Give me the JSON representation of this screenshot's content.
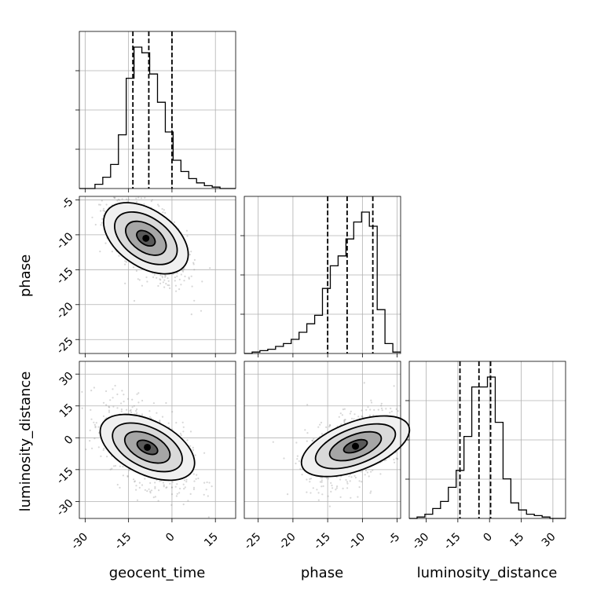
{
  "chart_data": {
    "type": "corner",
    "parameters": [
      "geocent_time",
      "phase",
      "luminosity_distance"
    ],
    "axis_labels": {
      "geocent_time": "geocent_time",
      "phase": "phase",
      "luminosity_distance": "luminosity_distance"
    },
    "ranges": {
      "geocent_time": [
        -32,
        22
      ],
      "phase": [
        -27,
        -4.5
      ],
      "luminosity_distance": [
        -38,
        36
      ]
    },
    "ticks": {
      "geocent_time": [
        "-30",
        "-15",
        "0",
        "15"
      ],
      "phase": [
        "-25",
        "-20",
        "-15",
        "-10",
        "-5"
      ],
      "luminosity_distance": [
        "-30",
        "-15",
        "0",
        "15",
        "30"
      ]
    },
    "tick_values": {
      "geocent_time": [
        -30,
        -15,
        0,
        15
      ],
      "phase": [
        -25,
        -20,
        -15,
        -10,
        -5
      ],
      "luminosity_distance": [
        -30,
        -15,
        0,
        15,
        30
      ]
    },
    "quantiles": {
      "geocent_time": [
        -13.5,
        -8,
        0
      ],
      "phase": [
        -15,
        -12.2,
        -8.5
      ],
      "luminosity_distance": [
        -14,
        -5,
        0.5
      ]
    },
    "histograms": {
      "geocent_time": {
        "edges": [
          -32,
          -29.3,
          -26.6,
          -23.9,
          -21.2,
          -18.5,
          -15.8,
          -13.1,
          -10.4,
          -7.7,
          -5,
          -2.3,
          0.4,
          3.1,
          5.8,
          8.5,
          11.2,
          13.9,
          16.6,
          19.3,
          22
        ],
        "counts": [
          0,
          0,
          0.03,
          0.08,
          0.17,
          0.38,
          0.78,
          1.0,
          0.96,
          0.81,
          0.61,
          0.4,
          0.2,
          0.12,
          0.07,
          0.04,
          0.02,
          0.01,
          0,
          0
        ]
      },
      "phase": {
        "edges": [
          -27,
          -25.87,
          -24.75,
          -23.62,
          -22.5,
          -21.37,
          -20.25,
          -19.12,
          -18,
          -16.87,
          -15.75,
          -14.62,
          -13.5,
          -12.37,
          -11.25,
          -10.12,
          -9,
          -7.87,
          -6.75,
          -5.62,
          -4.5
        ],
        "counts": [
          0,
          0.01,
          0.02,
          0.03,
          0.05,
          0.07,
          0.1,
          0.15,
          0.21,
          0.27,
          0.46,
          0.62,
          0.69,
          0.81,
          0.93,
          1.0,
          0.9,
          0.31,
          0.07,
          0.01
        ]
      },
      "luminosity_distance": {
        "edges": [
          -38,
          -34.3,
          -30.6,
          -26.9,
          -23.2,
          -19.5,
          -15.8,
          -12.1,
          -8.4,
          -4.7,
          -1,
          2.7,
          6.4,
          10.1,
          13.8,
          17.5,
          21.2,
          24.9,
          28.6,
          32.3,
          36
        ],
        "counts": [
          0,
          0.01,
          0.03,
          0.07,
          0.12,
          0.22,
          0.34,
          0.58,
          0.93,
          0.93,
          1.0,
          0.68,
          0.28,
          0.11,
          0.06,
          0.03,
          0.02,
          0.01,
          0,
          0
        ]
      }
    },
    "grid": true,
    "plot_contours": true,
    "plot_datapoints": true
  }
}
